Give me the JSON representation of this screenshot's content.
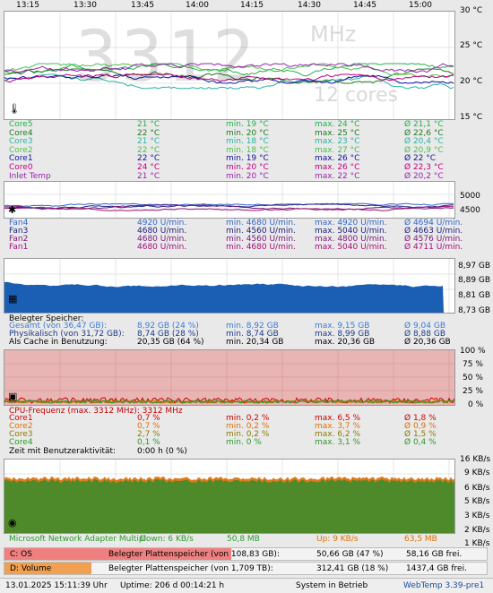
{
  "time_axis": [
    "13:15",
    "13:30",
    "13:45",
    "14:00",
    "14:15",
    "14:30",
    "14:45",
    "15:00"
  ],
  "temp": {
    "scale": [
      "30 °C",
      "25 °C",
      "20 °C",
      "15 °C"
    ],
    "watermark_big": "3312",
    "watermark_unit": "MHz",
    "watermark_cores": "12 cores",
    "rows": [
      {
        "name": "Core5",
        "cur": "21 °C",
        "min": "min. 19 °C",
        "max": "max. 24 °C",
        "avg": "Ø 21,1 °C",
        "color": "#22b14c"
      },
      {
        "name": "Core4",
        "cur": "22 °C",
        "min": "min. 20 °C",
        "max": "max. 25 °C",
        "avg": "Ø 22,6 °C",
        "color": "#1e7b1e"
      },
      {
        "name": "Core3",
        "cur": "21 °C",
        "min": "min. 18 °C",
        "max": "max. 23 °C",
        "avg": "Ø 20,4 °C",
        "color": "#2ab3a3"
      },
      {
        "name": "Core2",
        "cur": "22 °C",
        "min": "min. 18 °C",
        "max": "max. 27 °C",
        "avg": "Ø 20,9 °C",
        "color": "#4bbf4b"
      },
      {
        "name": "Core1",
        "cur": "22 °C",
        "min": "min. 19 °C",
        "max": "max. 26 °C",
        "avg": "Ø 22 °C",
        "color": "#1010a0"
      },
      {
        "name": "Core0",
        "cur": "24 °C",
        "min": "min. 20 °C",
        "max": "max. 26 °C",
        "avg": "Ø 22,3 °C",
        "color": "#c00080"
      },
      {
        "name": "Inlet Temp",
        "cur": "21 °C",
        "min": "min. 20 °C",
        "max": "max. 22 °C",
        "avg": "Ø 20,2 °C",
        "color": "#9b1fb0"
      }
    ]
  },
  "fan": {
    "scale": [
      "5000",
      "4500"
    ],
    "rows": [
      {
        "name": "Fan4",
        "cur": "4920 U/min.",
        "min": "min. 4680 U/min.",
        "max": "max. 4920 U/min.",
        "avg": "Ø 4694 U/min.",
        "color": "#3366cc"
      },
      {
        "name": "Fan3",
        "cur": "4680 U/min.",
        "min": "min. 4560 U/min.",
        "max": "max. 5040 U/min.",
        "avg": "Ø 4663 U/min.",
        "color": "#202080"
      },
      {
        "name": "Fan2",
        "cur": "4680 U/min.",
        "min": "min. 4560 U/min.",
        "max": "max. 4800 U/min.",
        "avg": "Ø 4576 U/min.",
        "color": "#7a1a7a"
      },
      {
        "name": "Fan1",
        "cur": "4680 U/min.",
        "min": "min. 4680 U/min.",
        "max": "max. 5040 U/min.",
        "avg": "Ø 4711 U/min.",
        "color": "#a0107a"
      }
    ]
  },
  "mem": {
    "scale": [
      "8,97 GB",
      "8,89 GB",
      "8,81 GB",
      "8,73 GB"
    ],
    "title": "Belegter Speicher:",
    "rows": [
      {
        "name": "Gesamt (von 36,47 GB):",
        "cur": "8,92 GB (24 %)",
        "min": "min. 8,92 GB",
        "max": "max. 9,15 GB",
        "avg": "Ø 9,04 GB",
        "color": "#3a7bd5"
      },
      {
        "name": "Physikalisch (von 31,72 GB):",
        "cur": "8,74 GB (28 %)",
        "min": "min. 8,74 GB",
        "max": "max. 8,99 GB",
        "avg": "Ø 8,88 GB",
        "color": "#1a3a8a"
      },
      {
        "name": "Als Cache in Benutzung:",
        "cur": "20,35 GB (64 %)",
        "min": "min. 20,34 GB",
        "max": "max. 20,36 GB",
        "avg": "Ø 20,36 GB",
        "color": "#000000"
      }
    ]
  },
  "cpu": {
    "scale": [
      "100 %",
      "75 %",
      "50 %",
      "25 %",
      "0 %"
    ],
    "title": "CPU-Frequenz (max. 3312 MHz): 3312 MHz",
    "rows": [
      {
        "name": "Core1",
        "cur": "0,7 %",
        "min": "min. 0,2 %",
        "max": "max. 6,5 %",
        "avg": "Ø 1,8 %",
        "color": "#d00000"
      },
      {
        "name": "Core2",
        "cur": "0,7 %",
        "min": "min. 0,2 %",
        "max": "max. 3,7 %",
        "avg": "Ø 0,9 %",
        "color": "#e07000"
      },
      {
        "name": "Core3",
        "cur": "2,7 %",
        "min": "min. 0,2 %",
        "max": "max. 6,2 %",
        "avg": "Ø 1,5 %",
        "color": "#8a7a00"
      },
      {
        "name": "Core4",
        "cur": "0,1 %",
        "min": "min. 0 %",
        "max": "max. 3,1 %",
        "avg": "Ø 0,4 %",
        "color": "#2a9a2a"
      }
    ],
    "idle_label": "Zeit mit Benutzeraktivität:",
    "idle_value": "0:00 h (0 %)"
  },
  "net": {
    "scale": [
      "16 KB/s",
      "9 KB/s",
      "6 KB/s",
      "5 KB/s",
      "3 KB/s",
      "2 KB/s",
      "1 KB/s"
    ],
    "label": "Microsoft Network Adapter Multipl",
    "down": "Down: 6 KB/s",
    "down_total": "50,8 MB",
    "up": "Up: 9 KB/s",
    "up_total": "63,5 MB"
  },
  "disks": [
    {
      "name": "C: OS",
      "label": "Belegter Plattenspeicher (von 108,83 GB):",
      "used": "50,66 GB (47 %)",
      "free": "58,16 GB frei.",
      "fraction": 0.47,
      "color": "#f08080"
    },
    {
      "name": "D: Volume",
      "label": "Belegter Plattenspeicher (von 1,709 TB):",
      "used": "312,41 GB (18 %)",
      "free": "1437,4 GB frei.",
      "fraction": 0.18,
      "color": "#f0a050"
    }
  ],
  "status": {
    "datetime": "13.01.2025 15:11:39 Uhr",
    "uptime": "Uptime: 206 d 00:14:21 h",
    "state": "System in Betrieb",
    "version": "WebTemp 3.39-pre1"
  }
}
